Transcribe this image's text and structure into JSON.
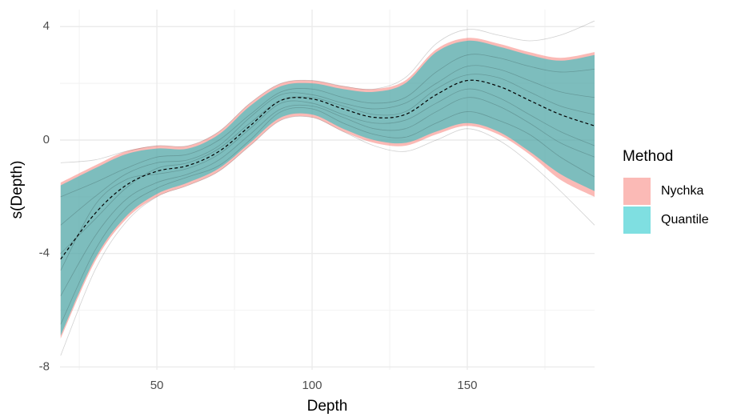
{
  "chart_data": {
    "type": "line",
    "x_label": "Depth",
    "y_label": "s(Depth)",
    "x": [
      19,
      30,
      40,
      50,
      60,
      70,
      80,
      90,
      100,
      110,
      120,
      130,
      140,
      150,
      160,
      170,
      180,
      191
    ],
    "xlim": [
      18.8,
      191
    ],
    "xticks": [
      50,
      100,
      150
    ],
    "ylim": [
      -8.1,
      4.6
    ],
    "yticks": [
      -8,
      -4,
      0,
      4
    ],
    "grid": true,
    "legend_title": "Method",
    "legend_position": "right",
    "bands": [
      {
        "name": "Nychka",
        "color": "#F8766D",
        "lower": [
          -7.0,
          -4.3,
          -2.8,
          -2.0,
          -1.6,
          -1.1,
          -0.2,
          0.7,
          0.8,
          0.3,
          -0.1,
          -0.2,
          0.2,
          0.5,
          0.2,
          -0.5,
          -1.4,
          -2.0
        ],
        "upper": [
          -1.5,
          -0.9,
          -0.4,
          -0.2,
          -0.2,
          0.3,
          1.3,
          2.0,
          2.1,
          1.9,
          1.8,
          2.1,
          3.2,
          3.6,
          3.4,
          3.1,
          2.9,
          3.1
        ]
      },
      {
        "name": "Quantile",
        "color": "#00BFC4",
        "lower": [
          -6.9,
          -4.2,
          -2.7,
          -1.9,
          -1.5,
          -1.0,
          -0.1,
          0.8,
          0.9,
          0.4,
          0.0,
          -0.1,
          0.3,
          0.6,
          0.3,
          -0.4,
          -1.2,
          -1.8
        ],
        "upper": [
          -1.6,
          -1.0,
          -0.5,
          -0.3,
          -0.3,
          0.2,
          1.2,
          1.9,
          2.0,
          1.8,
          1.7,
          2.0,
          3.1,
          3.5,
          3.3,
          3.0,
          2.8,
          3.0
        ]
      }
    ],
    "draws": {
      "color": "#000000",
      "values": [
        [
          -3.0,
          -2.0,
          -1.2,
          -0.8,
          -0.7,
          -0.2,
          0.8,
          1.6,
          1.6,
          1.3,
          1.1,
          1.3,
          2.0,
          2.6,
          2.5,
          2.1,
          1.7,
          1.5
        ],
        [
          -5.5,
          -3.4,
          -2.1,
          -1.5,
          -1.2,
          -0.7,
          0.2,
          1.1,
          1.2,
          0.8,
          0.4,
          0.4,
          1.0,
          1.5,
          1.2,
          0.6,
          -0.1,
          -0.6
        ],
        [
          -2.0,
          -1.5,
          -1.0,
          -0.6,
          -0.5,
          0.0,
          0.9,
          1.7,
          1.8,
          1.5,
          1.3,
          1.5,
          2.4,
          3.0,
          2.9,
          2.6,
          2.4,
          2.5
        ],
        [
          -6.5,
          -3.9,
          -2.4,
          -1.7,
          -1.3,
          -0.9,
          0.0,
          1.0,
          1.1,
          0.6,
          0.2,
          0.1,
          0.6,
          1.0,
          0.7,
          0.2,
          -0.6,
          -1.3
        ],
        [
          -4.0,
          -2.8,
          -1.7,
          -1.0,
          -0.8,
          -0.3,
          0.6,
          1.4,
          1.5,
          1.2,
          0.9,
          1.0,
          1.8,
          2.3,
          2.2,
          1.7,
          1.2,
          0.9
        ],
        [
          -4.6,
          -2.3,
          -1.4,
          -1.2,
          -1.0,
          -0.5,
          0.4,
          1.3,
          1.3,
          0.9,
          0.6,
          0.7,
          1.3,
          1.8,
          1.5,
          0.9,
          0.3,
          -0.2
        ],
        [
          -7.6,
          -4.6,
          -2.9,
          -2.0,
          -1.6,
          -1.1,
          -0.2,
          0.7,
          0.8,
          0.3,
          -0.2,
          -0.4,
          0.0,
          0.4,
          0.0,
          -0.8,
          -1.8,
          -3.0
        ],
        [
          -0.8,
          -0.7,
          -0.4,
          -0.2,
          -0.2,
          0.3,
          1.3,
          2.0,
          2.1,
          1.9,
          1.8,
          2.2,
          3.4,
          3.9,
          3.7,
          3.5,
          3.7,
          4.2
        ]
      ]
    },
    "mean": {
      "color": "#000000",
      "values": [
        -4.2,
        -2.6,
        -1.6,
        -1.1,
        -0.9,
        -0.4,
        0.5,
        1.4,
        1.45,
        1.1,
        0.8,
        0.9,
        1.6,
        2.1,
        1.9,
        1.4,
        0.9,
        0.5
      ]
    }
  }
}
